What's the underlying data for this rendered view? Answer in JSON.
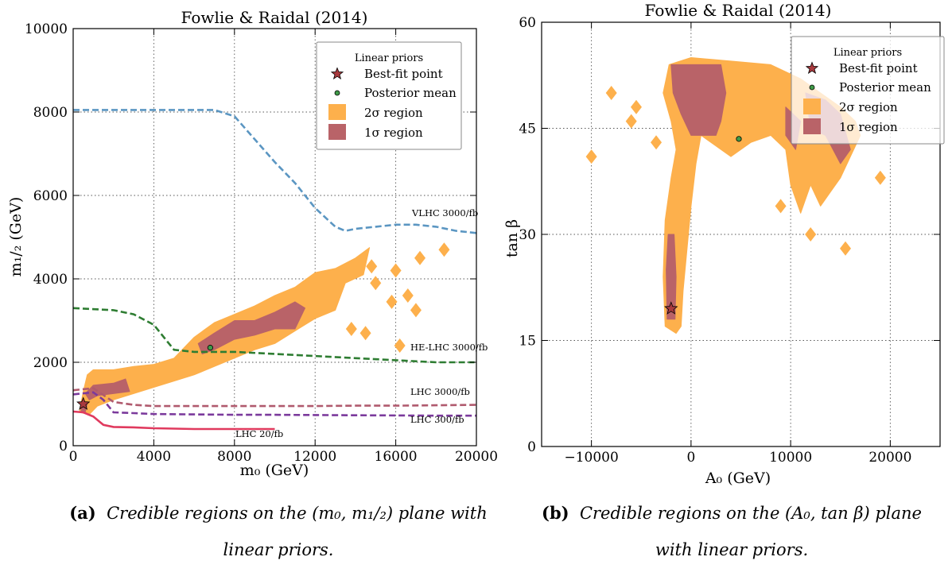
{
  "captions": [
    {
      "label": "(a)",
      "line1": "Credible regions on the (m₀, m₁/₂) plane with",
      "line2": "linear priors."
    },
    {
      "label": "(b)",
      "line1": "Credible regions on the (A₀, tan β) plane",
      "line2": "with linear priors."
    }
  ],
  "chart_data": [
    {
      "type": "area",
      "title": "Fowlie & Raidal (2014)",
      "xlabel": "m₀ (GeV)",
      "ylabel": "m₁/₂ (GeV)",
      "xlim": [
        0,
        20000
      ],
      "ylim": [
        0,
        10000
      ],
      "xticks": [
        0,
        4000,
        8000,
        12000,
        16000,
        20000
      ],
      "yticks": [
        0,
        2000,
        4000,
        6000,
        8000,
        10000
      ],
      "grid": true,
      "legend": {
        "title": "Linear priors",
        "placement": "top-right",
        "entries": [
          "Best-fit point",
          "Posterior mean",
          "2σ region",
          "1σ region"
        ]
      },
      "colors": {
        "two_sigma": "#fdb04c",
        "one_sigma": "#b96368",
        "star": "#a93a3e",
        "mean": "#3f9a48"
      },
      "best_fit": [
        500,
        1000
      ],
      "posterior_mean": [
        6800,
        2350
      ],
      "two_sigma_region": [
        [
          300,
          800
        ],
        [
          500,
          1300
        ],
        [
          700,
          1700
        ],
        [
          1000,
          1820
        ],
        [
          2000,
          1820
        ],
        [
          3000,
          1900
        ],
        [
          4000,
          1950
        ],
        [
          5000,
          2100
        ],
        [
          6000,
          2600
        ],
        [
          7000,
          2950
        ],
        [
          8000,
          3150
        ],
        [
          9000,
          3350
        ],
        [
          10000,
          3600
        ],
        [
          11000,
          3800
        ],
        [
          12000,
          4150
        ],
        [
          13000,
          4250
        ],
        [
          14000,
          4500
        ],
        [
          14700,
          4750
        ],
        [
          14400,
          4100
        ],
        [
          13500,
          3900
        ],
        [
          13000,
          3250
        ],
        [
          12000,
          3050
        ],
        [
          11000,
          2750
        ],
        [
          10000,
          2450
        ],
        [
          9000,
          2300
        ],
        [
          8000,
          2100
        ],
        [
          7000,
          1900
        ],
        [
          6000,
          1700
        ],
        [
          5000,
          1550
        ],
        [
          4000,
          1400
        ],
        [
          3000,
          1250
        ],
        [
          2000,
          1100
        ],
        [
          1200,
          950
        ],
        [
          800,
          750
        ]
      ],
      "one_sigma_region": [
        [
          600,
          1250
        ],
        [
          1000,
          1450
        ],
        [
          2000,
          1500
        ],
        [
          2600,
          1600
        ],
        [
          2800,
          1300
        ],
        [
          2000,
          1250
        ],
        [
          1200,
          1200
        ],
        [
          800,
          1100
        ]
      ],
      "one_sigma_region_2": [
        [
          6200,
          2450
        ],
        [
          7000,
          2700
        ],
        [
          8000,
          3000
        ],
        [
          9000,
          3000
        ],
        [
          10000,
          3200
        ],
        [
          11000,
          3450
        ],
        [
          11500,
          3300
        ],
        [
          11000,
          2800
        ],
        [
          10000,
          2800
        ],
        [
          9000,
          2650
        ],
        [
          8000,
          2550
        ],
        [
          7000,
          2300
        ],
        [
          6400,
          2200
        ]
      ],
      "one_sigma_region_3": [
        [
          400,
          950
        ],
        [
          700,
          1000
        ],
        [
          600,
          800
        ],
        [
          400,
          800
        ]
      ],
      "two_sigma_islands": [
        [
          14800,
          4300
        ],
        [
          16000,
          4200
        ],
        [
          17200,
          4500
        ],
        [
          18400,
          4700
        ],
        [
          16600,
          3600
        ],
        [
          15800,
          3450
        ],
        [
          17000,
          3250
        ],
        [
          13800,
          2800
        ],
        [
          12600,
          3550
        ],
        [
          14500,
          2700
        ],
        [
          16200,
          2400
        ],
        [
          15000,
          3900
        ]
      ],
      "series": [
        {
          "name": "VLHC 3000/fb",
          "color": "#5b96c2",
          "x": [
            0,
            7000,
            8000,
            9000,
            10000,
            11000,
            12000,
            13000,
            13500,
            14000,
            15000,
            16000,
            17000,
            18000,
            19000,
            20000
          ],
          "y": [
            8050,
            8050,
            7900,
            7350,
            6800,
            6300,
            5700,
            5250,
            5150,
            5200,
            5250,
            5300,
            5300,
            5250,
            5150,
            5100
          ]
        },
        {
          "name": "HE-LHC 3000/fb",
          "color": "#2e7d32",
          "x": [
            0,
            2000,
            3000,
            4000,
            5000,
            6000,
            8000,
            10000,
            12000,
            14000,
            16000,
            18000,
            20000
          ],
          "y": [
            3300,
            3250,
            3150,
            2900,
            2300,
            2250,
            2250,
            2200,
            2150,
            2100,
            2050,
            2000,
            2000
          ]
        },
        {
          "name": "LHC 3000/fb",
          "color": "#b05a6e",
          "x": [
            0,
            1000,
            2000,
            3000,
            4000,
            6000,
            8000,
            10000,
            12000,
            14000,
            16000,
            18000,
            20000
          ],
          "y": [
            1330,
            1380,
            1050,
            980,
            950,
            950,
            950,
            950,
            950,
            960,
            960,
            970,
            980
          ]
        },
        {
          "name": "LHC 300/fb",
          "color": "#7b3a9c",
          "x": [
            0,
            1000,
            1500,
            2000,
            3000,
            4000,
            6000,
            8000,
            10000,
            12000,
            14000,
            16000,
            18000,
            20000
          ],
          "y": [
            1230,
            1280,
            1100,
            800,
            780,
            760,
            750,
            740,
            740,
            735,
            730,
            725,
            720,
            720
          ]
        },
        {
          "name": "LHC 20/fb",
          "color": "#e03a5e",
          "x": [
            0,
            500,
            1000,
            1500,
            2000,
            3000,
            4000,
            6000,
            8000,
            10000
          ],
          "y": [
            820,
            800,
            700,
            500,
            450,
            440,
            420,
            400,
            400,
            400
          ]
        }
      ]
    },
    {
      "type": "area",
      "title": "Fowlie & Raidal (2014)",
      "xlabel": "A₀ (GeV)",
      "ylabel": "tan β",
      "xlim": [
        -15000,
        25000
      ],
      "ylim": [
        0,
        60
      ],
      "xticks": [
        -10000,
        0,
        10000,
        20000
      ],
      "xtick_labels": [
        "−10000",
        "0",
        "10000",
        "20000"
      ],
      "yticks": [
        0,
        15,
        30,
        45,
        60
      ],
      "grid": true,
      "legend": {
        "title": "Linear priors",
        "placement": "top-right",
        "entries": [
          "Best-fit point",
          "Posterior mean",
          "2σ region",
          "1σ region"
        ]
      },
      "best_fit": [
        -2000,
        19.5
      ],
      "posterior_mean": [
        4800,
        43.5
      ],
      "two_sigma_region": [
        [
          -2600,
          17
        ],
        [
          -2800,
          24
        ],
        [
          -2600,
          32
        ],
        [
          -2000,
          38
        ],
        [
          -1500,
          42
        ],
        [
          -2000,
          46
        ],
        [
          -2800,
          50
        ],
        [
          -2200,
          54
        ],
        [
          0,
          55
        ],
        [
          4000,
          54.5
        ],
        [
          8000,
          54
        ],
        [
          11000,
          52
        ],
        [
          13000,
          50
        ],
        [
          15000,
          48
        ],
        [
          16500,
          46
        ],
        [
          17000,
          44
        ],
        [
          16000,
          41
        ],
        [
          15000,
          38
        ],
        [
          14000,
          36
        ],
        [
          13000,
          34
        ],
        [
          12000,
          37
        ],
        [
          11000,
          33
        ],
        [
          10000,
          37
        ],
        [
          9500,
          42
        ],
        [
          8000,
          44
        ],
        [
          6000,
          43
        ],
        [
          4000,
          41
        ],
        [
          1000,
          44
        ],
        [
          500,
          40
        ],
        [
          0,
          34
        ],
        [
          -400,
          28
        ],
        [
          -800,
          22
        ],
        [
          -1000,
          17
        ],
        [
          -1500,
          16
        ]
      ],
      "one_sigma_region": [
        [
          -2400,
          18
        ],
        [
          -2500,
          25
        ],
        [
          -2300,
          30
        ],
        [
          -1700,
          30
        ],
        [
          -1500,
          24
        ],
        [
          -1600,
          18
        ]
      ],
      "one_sigma_region_2": [
        [
          -2000,
          54
        ],
        [
          3000,
          54
        ],
        [
          3500,
          50
        ],
        [
          3000,
          46
        ],
        [
          2500,
          44
        ],
        [
          0,
          44
        ],
        [
          -1000,
          47
        ],
        [
          -1800,
          50
        ]
      ],
      "one_sigma_region_3": [
        [
          11500,
          50
        ],
        [
          13500,
          49
        ],
        [
          15000,
          47
        ],
        [
          16000,
          42
        ],
        [
          15000,
          40
        ],
        [
          13500,
          44
        ],
        [
          12000,
          45
        ]
      ],
      "one_sigma_region_4": [
        [
          9500,
          48
        ],
        [
          11000,
          46
        ],
        [
          10500,
          42
        ],
        [
          9500,
          44
        ]
      ],
      "two_sigma_islands": [
        [
          -10000,
          41
        ],
        [
          -6000,
          46
        ],
        [
          -8000,
          50
        ],
        [
          -5500,
          48
        ],
        [
          -2000,
          51
        ],
        [
          9000,
          34
        ],
        [
          12000,
          30
        ],
        [
          15500,
          28
        ],
        [
          19000,
          38
        ],
        [
          -3500,
          43
        ]
      ]
    }
  ]
}
